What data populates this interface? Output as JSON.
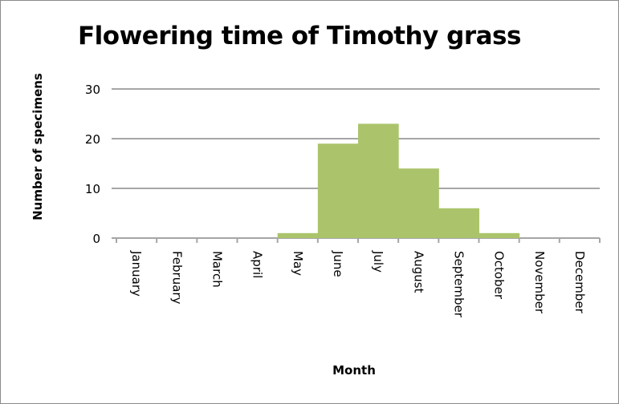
{
  "chart_data": {
    "type": "bar",
    "title": "Flowering time of Timothy grass",
    "xlabel": "Month",
    "ylabel": "Number of specimens",
    "categories": [
      "January",
      "February",
      "March",
      "April",
      "May",
      "June",
      "July",
      "August",
      "September",
      "October",
      "November",
      "December"
    ],
    "values": [
      0,
      0,
      0,
      0,
      1,
      19,
      23,
      14,
      6,
      1,
      0,
      0
    ],
    "ylim": [
      0,
      30
    ],
    "yticks": [
      0,
      10,
      20,
      30
    ],
    "grid": true,
    "legend": "none",
    "bar_color": "#abc46b",
    "grid_color": "#a6a6a6"
  }
}
